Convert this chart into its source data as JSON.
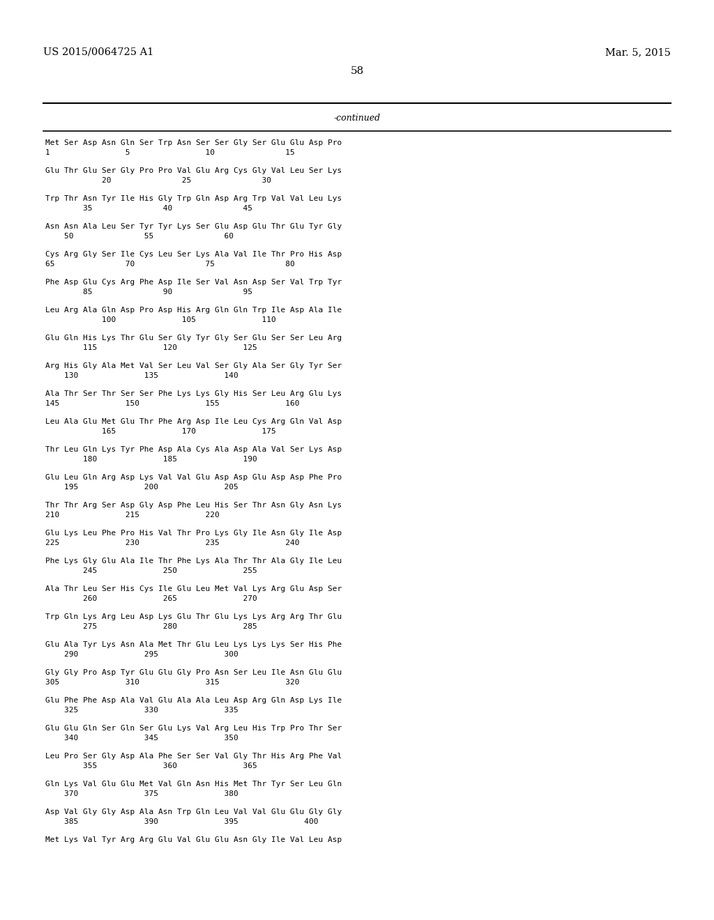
{
  "header_left": "US 2015/0064725 A1",
  "header_right": "Mar. 5, 2015",
  "page_number": "58",
  "continued_label": "-continued",
  "background_color": "#ffffff",
  "text_color": "#000000",
  "sequence_blocks": [
    {
      "seq_line": "Met Ser Asp Asn Gln Ser Trp Asn Ser Ser Gly Ser Glu Glu Asp Pro",
      "num_line": "1                5                10               15"
    },
    {
      "seq_line": "Glu Thr Glu Ser Gly Pro Pro Val Glu Arg Cys Gly Val Leu Ser Lys",
      "num_line": "            20               25               30"
    },
    {
      "seq_line": "Trp Thr Asn Tyr Ile His Gly Trp Gln Asp Arg Trp Val Val Leu Lys",
      "num_line": "        35               40               45"
    },
    {
      "seq_line": "Asn Asn Ala Leu Ser Tyr Tyr Lys Ser Glu Asp Glu Thr Glu Tyr Gly",
      "num_line": "    50               55               60"
    },
    {
      "seq_line": "Cys Arg Gly Ser Ile Cys Leu Ser Lys Ala Val Ile Thr Pro His Asp",
      "num_line": "65               70               75               80"
    },
    {
      "seq_line": "Phe Asp Glu Cys Arg Phe Asp Ile Ser Val Asn Asp Ser Val Trp Tyr",
      "num_line": "        85               90               95"
    },
    {
      "seq_line": "Leu Arg Ala Gln Asp Pro Asp His Arg Gln Gln Trp Ile Asp Ala Ile",
      "num_line": "            100              105              110"
    },
    {
      "seq_line": "Glu Gln His Lys Thr Glu Ser Gly Tyr Gly Ser Glu Ser Ser Leu Arg",
      "num_line": "        115              120              125"
    },
    {
      "seq_line": "Arg His Gly Ala Met Val Ser Leu Val Ser Gly Ala Ser Gly Tyr Ser",
      "num_line": "    130              135              140"
    },
    {
      "seq_line": "Ala Thr Ser Thr Ser Ser Phe Lys Lys Gly His Ser Leu Arg Glu Lys",
      "num_line": "145              150              155              160"
    },
    {
      "seq_line": "Leu Ala Glu Met Glu Thr Phe Arg Asp Ile Leu Cys Arg Gln Val Asp",
      "num_line": "            165              170              175"
    },
    {
      "seq_line": "Thr Leu Gln Lys Tyr Phe Asp Ala Cys Ala Asp Ala Val Ser Lys Asp",
      "num_line": "        180              185              190"
    },
    {
      "seq_line": "Glu Leu Gln Arg Asp Lys Val Val Glu Asp Asp Glu Asp Asp Phe Pro",
      "num_line": "    195              200              205"
    },
    {
      "seq_line": "Thr Thr Arg Ser Asp Gly Asp Phe Leu His Ser Thr Asn Gly Asn Lys",
      "num_line": "210              215              220"
    },
    {
      "seq_line": "Glu Lys Leu Phe Pro His Val Thr Pro Lys Gly Ile Asn Gly Ile Asp",
      "num_line": "225              230              235              240"
    },
    {
      "seq_line": "Phe Lys Gly Glu Ala Ile Thr Phe Lys Ala Thr Thr Ala Gly Ile Leu",
      "num_line": "        245              250              255"
    },
    {
      "seq_line": "Ala Thr Leu Ser His Cys Ile Glu Leu Met Val Lys Arg Glu Asp Ser",
      "num_line": "        260              265              270"
    },
    {
      "seq_line": "Trp Gln Lys Arg Leu Asp Lys Glu Thr Glu Lys Lys Arg Arg Thr Glu",
      "num_line": "        275              280              285"
    },
    {
      "seq_line": "Glu Ala Tyr Lys Asn Ala Met Thr Glu Leu Lys Lys Lys Ser His Phe",
      "num_line": "    290              295              300"
    },
    {
      "seq_line": "Gly Gly Pro Asp Tyr Glu Glu Gly Pro Asn Ser Leu Ile Asn Glu Glu",
      "num_line": "305              310              315              320"
    },
    {
      "seq_line": "Glu Phe Phe Asp Ala Val Glu Ala Ala Leu Asp Arg Gln Asp Lys Ile",
      "num_line": "    325              330              335"
    },
    {
      "seq_line": "Glu Glu Gln Ser Gln Ser Glu Lys Val Arg Leu His Trp Pro Thr Ser",
      "num_line": "    340              345              350"
    },
    {
      "seq_line": "Leu Pro Ser Gly Asp Ala Phe Ser Ser Val Gly Thr His Arg Phe Val",
      "num_line": "        355              360              365"
    },
    {
      "seq_line": "Gln Lys Val Glu Glu Met Val Gln Asn His Met Thr Tyr Ser Leu Gln",
      "num_line": "    370              375              380"
    },
    {
      "seq_line": "Asp Val Gly Gly Asp Ala Asn Trp Gln Leu Val Val Glu Glu Gly Gly",
      "num_line": "    385              390              395              400"
    },
    {
      "seq_line": "Met Lys Val Tyr Arg Arg Glu Val Glu Glu Asn Gly Ile Val Leu Asp",
      "num_line": ""
    }
  ]
}
